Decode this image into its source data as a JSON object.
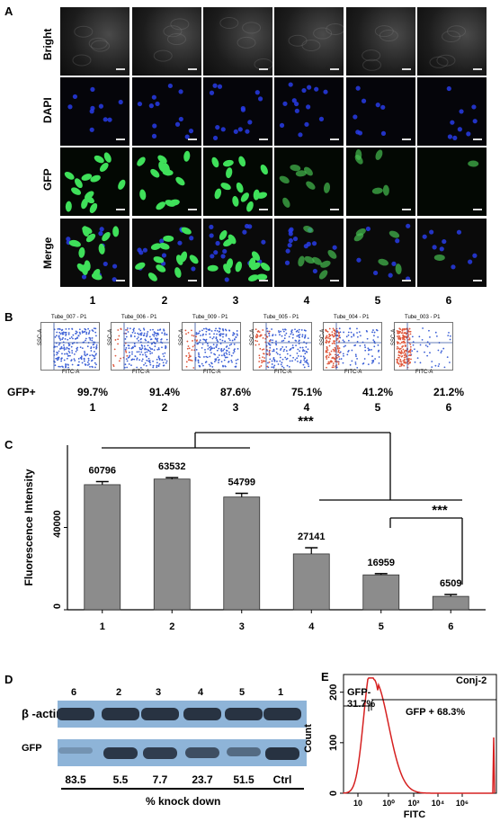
{
  "panel_a": {
    "label": "A",
    "rows": [
      "Bright",
      "DAPI",
      "GFP",
      "Merge"
    ],
    "columns": [
      "1",
      "2",
      "3",
      "4",
      "5",
      "6"
    ]
  },
  "panel_b": {
    "label": "B",
    "tube_titles": [
      "Tube_007 - P1",
      "Tube_006 - P1",
      "Tube_009 - P1",
      "Tube_005 - P1",
      "Tube_004 - P1",
      "Tube_003 - P1"
    ],
    "axis_x": "FITC-A",
    "axis_y": "SSC-A",
    "gfp_label": "GFP+",
    "gfp_values": [
      "99.7%",
      "91.4%",
      "87.6%",
      "75.1%",
      "41.2%",
      "21.2%"
    ],
    "columns": [
      "1",
      "2",
      "3",
      "4",
      "5",
      "6"
    ]
  },
  "panel_c": {
    "label": "C",
    "sig1": "***",
    "sig2": "***"
  },
  "chart_data": {
    "type": "bar",
    "title": "",
    "xlabel": "",
    "ylabel": "Fluorescence Intensity",
    "categories": [
      "1",
      "2",
      "3",
      "4",
      "5",
      "6"
    ],
    "values": [
      60796,
      63532,
      54799,
      27141,
      16959,
      6509
    ],
    "value_labels": [
      "60796",
      "63532",
      "54799",
      "27141",
      "16959",
      "6509"
    ],
    "errors": [
      1500,
      700,
      1800,
      3000,
      600,
      900
    ],
    "ylim": [
      0,
      80000
    ],
    "yticks": [
      "0",
      "40000"
    ],
    "bar_color": "#8c8c8c"
  },
  "panel_d": {
    "label": "D",
    "lanes": [
      "6",
      "2",
      "3",
      "4",
      "5",
      "1"
    ],
    "row1": "β -actin",
    "row2": "GFP",
    "knockdown": [
      "83.5",
      "5.5",
      "7.7",
      "23.7",
      "51.5",
      "Ctrl"
    ],
    "footer": "% knock down",
    "gfp_band_intensity": [
      0.1,
      0.9,
      0.85,
      0.7,
      0.45,
      0.95
    ]
  },
  "panel_e": {
    "label": "E",
    "title": "Conj-2",
    "gate_neg": "GFP-\n31.7%",
    "gate_neg_line1": "GFP-",
    "gate_neg_line2": "31.7%",
    "gate_pos": "GFP + 68.3%",
    "ylabel": "Count",
    "xlabel": "FITC",
    "yticks": [
      "0",
      "100",
      "200"
    ],
    "xticks": [
      "10",
      "10⁰",
      "10²",
      "10⁴",
      "10⁶"
    ],
    "line_color": "#d62020"
  }
}
